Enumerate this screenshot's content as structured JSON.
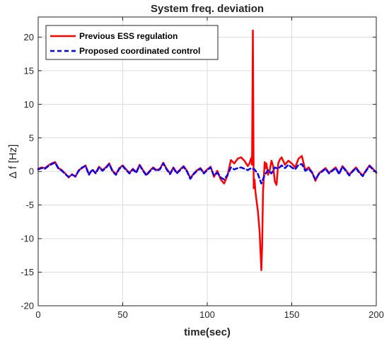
{
  "chart_data": {
    "type": "line",
    "title": "System freq. deviation",
    "xlabel": "time(sec)",
    "ylabel": "Δ f [Hz]",
    "xlim": [
      0,
      200
    ],
    "ylim": [
      -20,
      23
    ],
    "xticks": [
      0,
      50,
      100,
      150,
      200
    ],
    "yticks": [
      -20,
      -15,
      -10,
      -5,
      0,
      5,
      10,
      15,
      20
    ],
    "xtick_labels": [
      "0",
      "50",
      "100",
      "150",
      "200"
    ],
    "ytick_labels": [
      "-20",
      "-15",
      "-10",
      "-5",
      "0",
      "5",
      "10",
      "15",
      "20"
    ],
    "grid": true,
    "legend_position": "top-left",
    "series": [
      {
        "name": "Previous ESS regulation",
        "color": "#ff0000",
        "style": "solid",
        "x": [
          0,
          2,
          4,
          6,
          8,
          10,
          12,
          14,
          16,
          18,
          20,
          22,
          24,
          26,
          28,
          30,
          32,
          34,
          36,
          38,
          40,
          42,
          44,
          46,
          48,
          50,
          52,
          54,
          56,
          58,
          60,
          62,
          64,
          66,
          68,
          70,
          72,
          74,
          76,
          78,
          80,
          82,
          84,
          86,
          88,
          90,
          92,
          94,
          96,
          98,
          100,
          102,
          104,
          106,
          108,
          110,
          112,
          114,
          116,
          118,
          120,
          122,
          124,
          125,
          126,
          126.5,
          127,
          127.5,
          128,
          128.5,
          129,
          130,
          131,
          132,
          132.5,
          133,
          134,
          134.5,
          135,
          136,
          137,
          138,
          139,
          140,
          141,
          142,
          143,
          144,
          146,
          148,
          150,
          152,
          154,
          156,
          158,
          160,
          162,
          164,
          166,
          168,
          170,
          172,
          174,
          176,
          178,
          180,
          182,
          184,
          186,
          188,
          190,
          192,
          194,
          196,
          198,
          200
        ],
        "y": [
          0.4,
          0.6,
          0.5,
          0.9,
          1.2,
          1.4,
          0.5,
          0.2,
          -0.3,
          -0.9,
          -0.4,
          -0.8,
          0.2,
          0.5,
          0.9,
          -0.4,
          0.2,
          -0.2,
          0.7,
          0.2,
          0.6,
          1.2,
          0.1,
          -0.4,
          0.5,
          0.9,
          0.3,
          -0.2,
          0.4,
          -0.1,
          1.0,
          0.2,
          -0.5,
          0.1,
          0.6,
          0.2,
          0.4,
          1.3,
          0.4,
          -0.3,
          0.6,
          -0.2,
          0.3,
          0.8,
          0.1,
          -1.0,
          -0.3,
          0.2,
          0.5,
          -0.2,
          0.3,
          0.7,
          -0.8,
          0.1,
          -1.2,
          -1.8,
          -0.6,
          1.7,
          1.2,
          1.9,
          2.1,
          1.6,
          0.8,
          1.2,
          2.0,
          1.0,
          21.0,
          -2.5,
          -1.2,
          -3.0,
          -4.0,
          -6.0,
          -9.0,
          -14.7,
          -11.0,
          -3.0,
          1.4,
          0.5,
          1.2,
          -0.5,
          0.2,
          1.6,
          0.8,
          -1.5,
          -2.0,
          1.2,
          1.8,
          2.1,
          1.0,
          1.6,
          1.2,
          0.6,
          1.9,
          2.3,
          0.2,
          0.6,
          -0.1,
          -1.4,
          -0.3,
          0.1,
          0.5,
          -0.2,
          0.2,
          0.6,
          -0.3,
          0.8,
          0.2,
          -0.5,
          0.1,
          0.6,
          -0.1,
          -0.6,
          0.2,
          0.9,
          0.4,
          -0.2
        ]
      },
      {
        "name": "Proposed coordinated control",
        "color": "#0000ff",
        "style": "dashed",
        "x": [
          0,
          2,
          4,
          6,
          8,
          10,
          12,
          14,
          16,
          18,
          20,
          22,
          24,
          26,
          28,
          30,
          32,
          34,
          36,
          38,
          40,
          42,
          44,
          46,
          48,
          50,
          52,
          54,
          56,
          58,
          60,
          62,
          64,
          66,
          68,
          70,
          72,
          74,
          76,
          78,
          80,
          82,
          84,
          86,
          88,
          90,
          92,
          94,
          96,
          98,
          100,
          102,
          104,
          106,
          108,
          110,
          112,
          114,
          116,
          118,
          120,
          122,
          124,
          126,
          128,
          130,
          132,
          134,
          136,
          138,
          140,
          142,
          144,
          146,
          148,
          150,
          152,
          154,
          156,
          158,
          160,
          162,
          164,
          166,
          168,
          170,
          172,
          174,
          176,
          178,
          180,
          182,
          184,
          186,
          188,
          190,
          192,
          194,
          196,
          198,
          200
        ],
        "y": [
          0.3,
          0.5,
          0.4,
          0.8,
          1.1,
          1.3,
          0.4,
          0.1,
          -0.4,
          -0.8,
          -0.5,
          -0.7,
          0.1,
          0.6,
          0.8,
          -0.5,
          0.3,
          -0.3,
          0.6,
          0.1,
          0.5,
          1.1,
          0.0,
          -0.5,
          0.4,
          0.8,
          0.2,
          -0.3,
          0.3,
          -0.2,
          0.9,
          0.1,
          -0.6,
          0.0,
          0.5,
          0.1,
          0.3,
          1.2,
          0.3,
          -0.4,
          0.5,
          -0.3,
          0.2,
          0.7,
          0.0,
          -1.1,
          -0.4,
          0.1,
          0.4,
          -0.3,
          0.2,
          0.6,
          -0.6,
          -0.2,
          -0.9,
          -1.2,
          -0.5,
          0.6,
          0.3,
          0.5,
          0.6,
          0.4,
          0.2,
          0.5,
          0.3,
          -0.4,
          -1.8,
          -0.5,
          0.2,
          -0.3,
          0.6,
          0.4,
          0.9,
          0.5,
          1.0,
          0.6,
          0.3,
          1.0,
          1.1,
          0.1,
          0.4,
          -0.2,
          -1.2,
          -0.4,
          0.0,
          0.4,
          -0.3,
          0.1,
          0.5,
          -0.4,
          0.7,
          0.1,
          -0.6,
          0.0,
          0.5,
          -0.2,
          -0.7,
          0.1,
          0.8,
          0.3,
          -0.1
        ]
      }
    ]
  }
}
